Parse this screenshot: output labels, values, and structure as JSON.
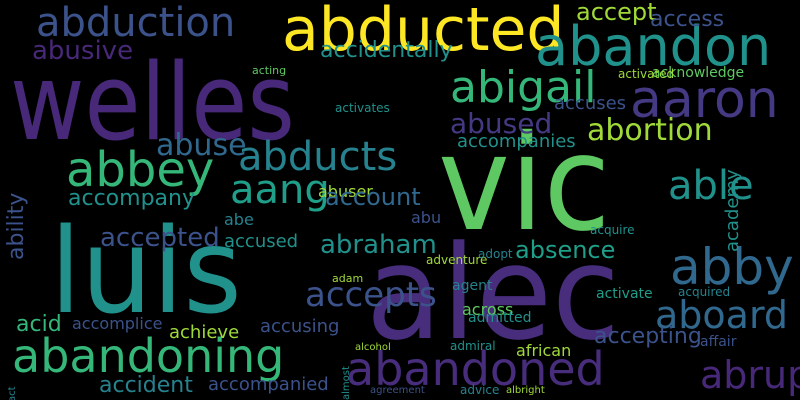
{
  "words": [
    "welles",
    "vic",
    "alec",
    "luis",
    "abandon",
    "abducted",
    "abigail",
    "aaron",
    "abduction",
    "abducts",
    "abbey",
    "aang",
    "abandoning",
    "abandoned",
    "abby",
    "aboard",
    "able",
    "abortion",
    "abused",
    "abuse",
    "abuser",
    "abusive",
    "accidentally",
    "accept",
    "access",
    "acknowledge",
    "academy",
    "accepted",
    "abraham",
    "absence",
    "accepting",
    "accused",
    "accident",
    "accompanied",
    "abruptly",
    "accepts",
    "accompany",
    "account",
    "abe",
    "abu",
    "acid",
    "accomplice",
    "achieve",
    "accusing",
    "ability",
    "accuses",
    "accompanies",
    "activated",
    "activates",
    "acquire",
    "acquired",
    "act",
    "across",
    "admitted",
    "agent",
    "activate",
    "affair",
    "african",
    "adventure",
    "adopt",
    "adam",
    "advice",
    "agreement",
    "albright",
    "alcohol",
    "almost",
    "admiral",
    "acting"
  ]
}
